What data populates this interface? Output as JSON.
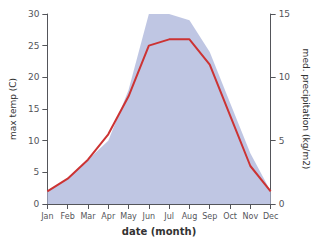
{
  "chart_data": {
    "type": "line",
    "categories": [
      "Jan",
      "Feb",
      "Mar",
      "Apr",
      "May",
      "Jun",
      "Jul",
      "Aug",
      "Sep",
      "Oct",
      "Nov",
      "Dec"
    ],
    "series": [
      {
        "type": "area",
        "color": "#b8c0e0",
        "axis": "y2",
        "values": [
          1,
          2,
          3.5,
          5,
          9,
          15,
          15,
          14.5,
          12,
          8,
          4,
          1
        ]
      },
      {
        "type": "line",
        "color": "#cc3333",
        "values": [
          2,
          4,
          7,
          11,
          17,
          25,
          26,
          26,
          22,
          14,
          6,
          2
        ]
      }
    ],
    "xlabel": "date (month)",
    "ylabel": "max temp (C)",
    "y2label": "med. precipitation (kg/m2)",
    "ylim": [
      0,
      30
    ],
    "yticks": [
      0,
      5,
      10,
      15,
      20,
      25,
      30
    ],
    "y2lim": [
      0,
      15
    ],
    "y2ticks": [
      0,
      5,
      10,
      15
    ],
    "grid": false
  }
}
